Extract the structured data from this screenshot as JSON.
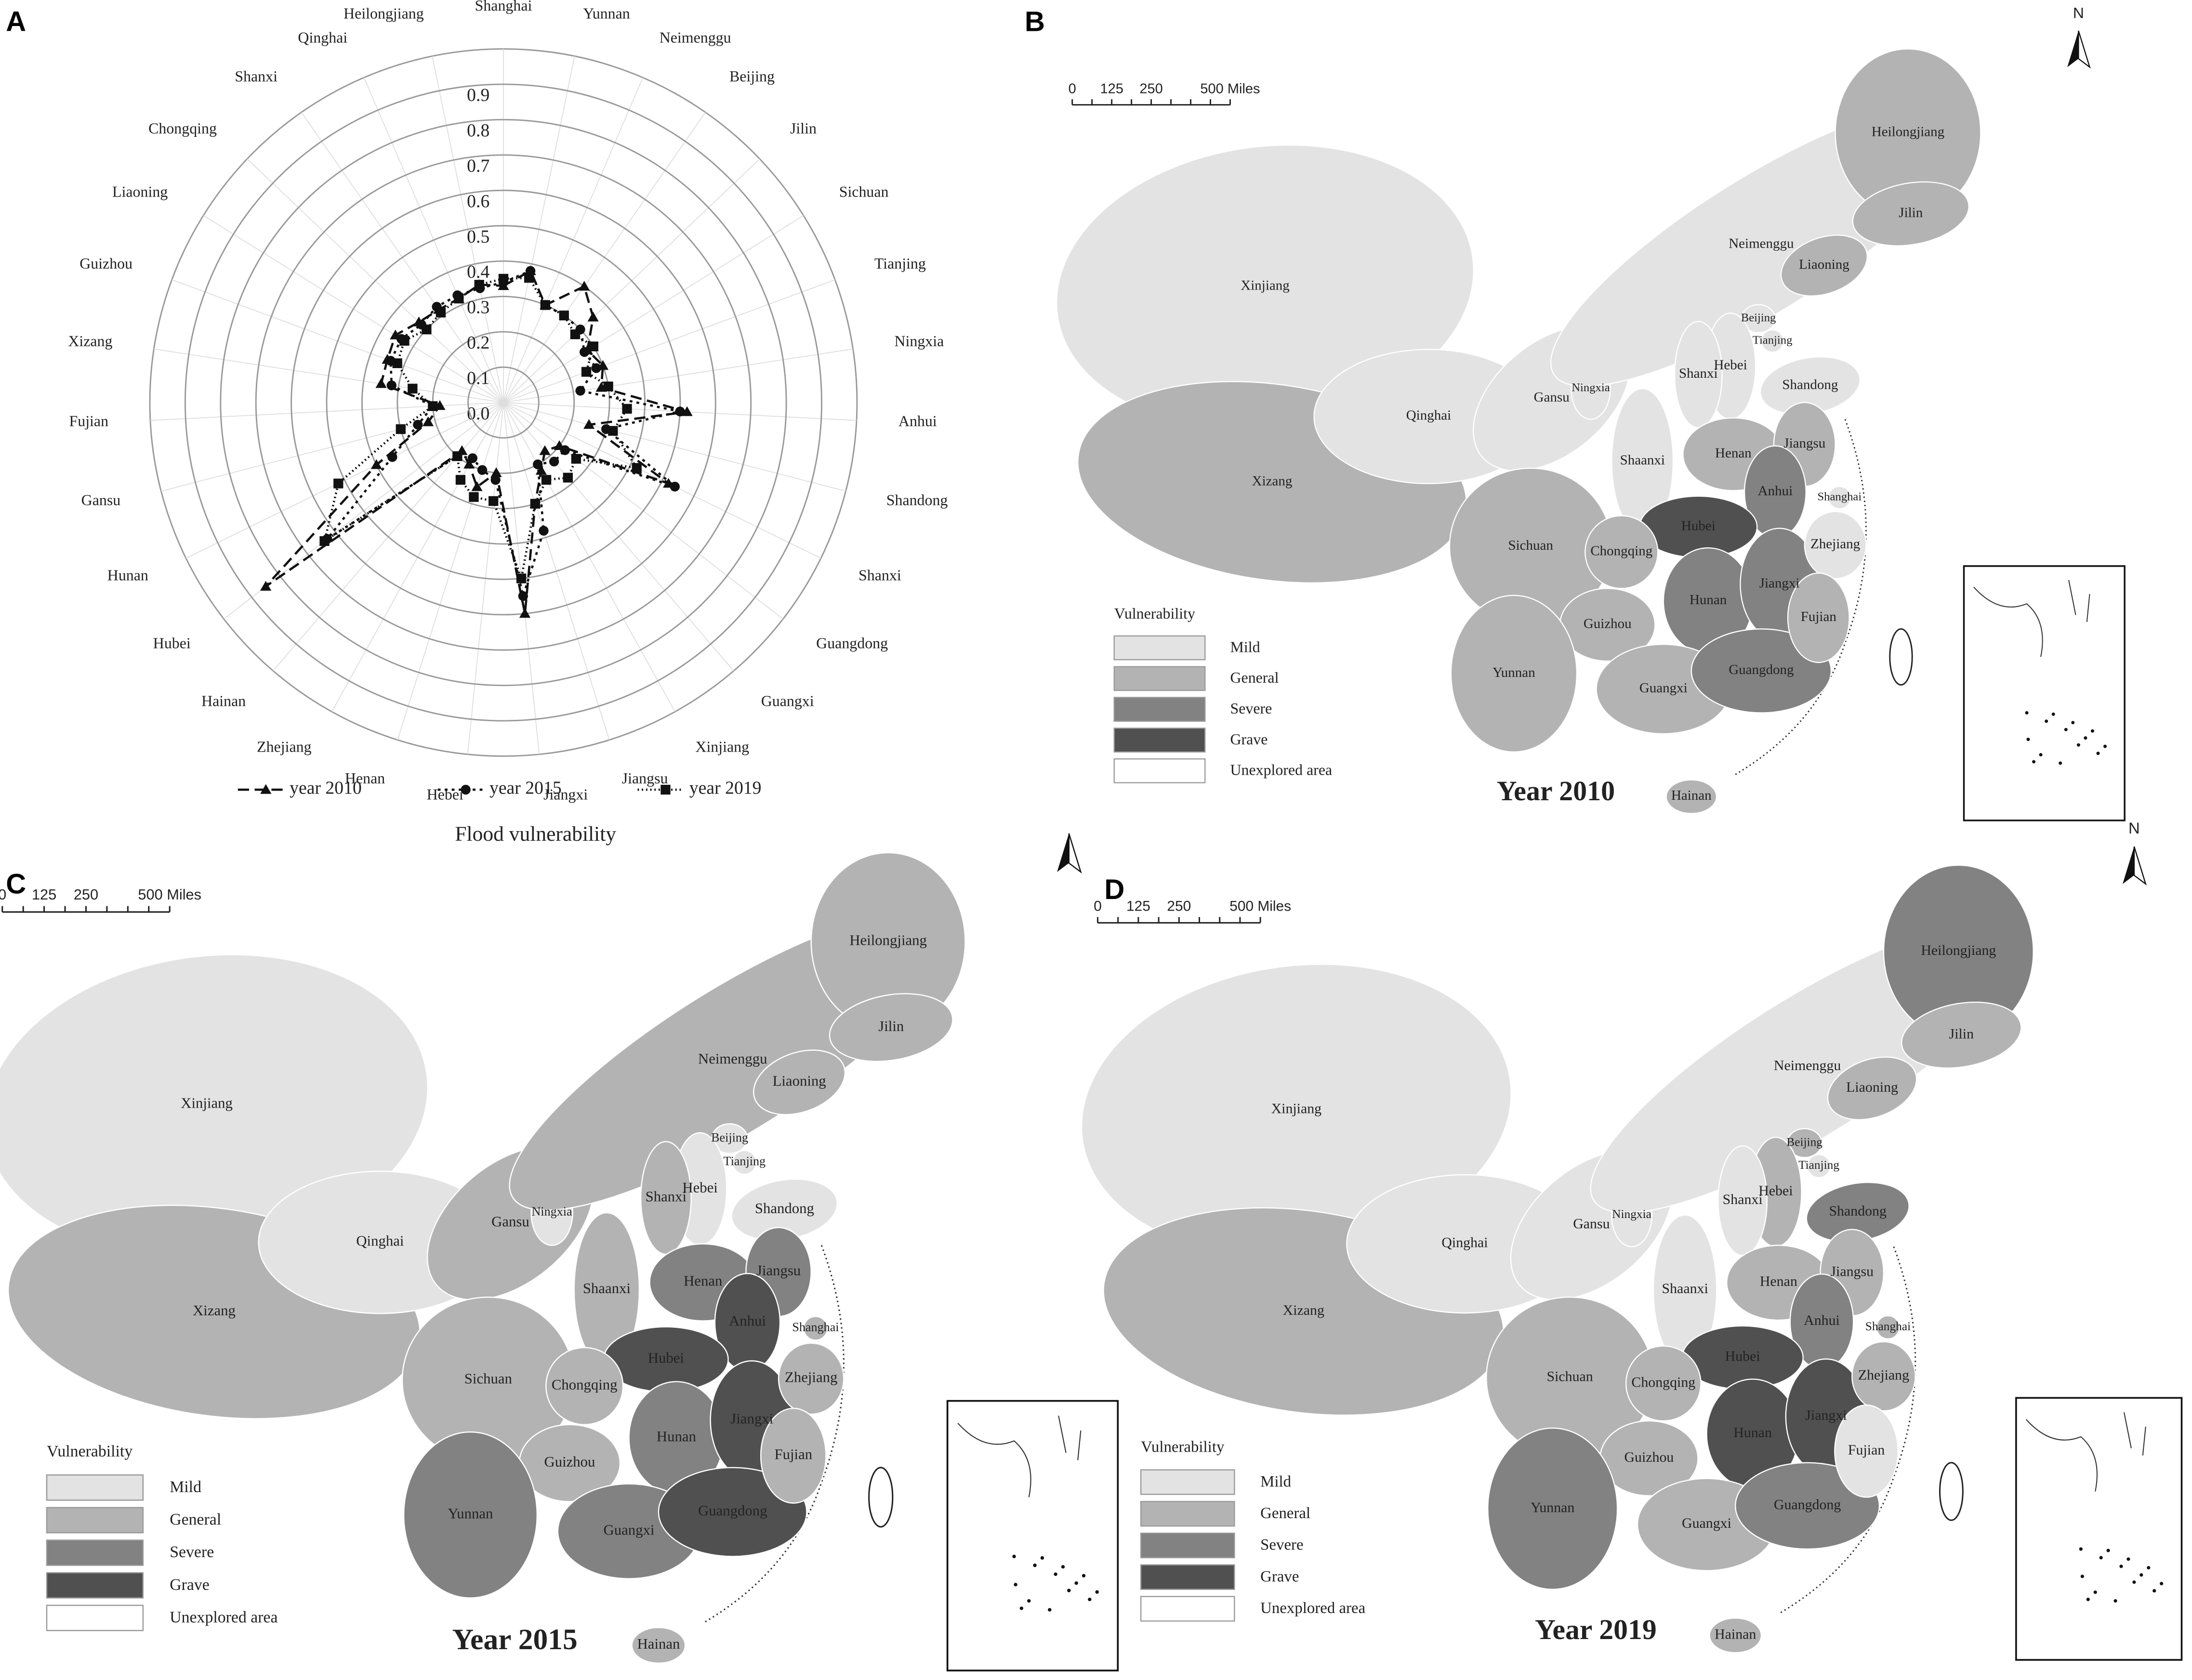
{
  "chart_data": [
    {
      "type": "radar",
      "panel_label": "A",
      "xlabel": "Flood vulnerability",
      "categories": [
        "Shanghai",
        "Yunnan",
        "Neimenggu",
        "Beijing",
        "Jilin",
        "Sichuan",
        "Tianjing",
        "Ningxia",
        "Anhui",
        "Shandong",
        "Shanxi",
        "Guangdong",
        "Guangxi",
        "Xinjiang",
        "Jiangsu",
        "Jiangxi",
        "Hebei",
        "Henan",
        "Zhejiang",
        "Hainan",
        "Hubei",
        "Hunan",
        "Gansu",
        "Fujian",
        "Xizang",
        "Guizhou",
        "Liaoning",
        "Chongqing",
        "Shanxi",
        "Qinghai",
        "Heilongjiang"
      ],
      "ylim": [
        0,
        1.0
      ],
      "yticks": [
        {
          "value": 0,
          "label": "0.0"
        },
        0.1,
        0.2,
        0.3,
        0.4,
        0.5,
        0.6,
        0.7,
        0.8,
        0.9
      ],
      "grid": true,
      "series": [
        {
          "name": "year 2010",
          "color": "#111111",
          "marker": "triangle",
          "dash": "8 4",
          "values": [
            0.33,
            0.38,
            0.3,
            0.4,
            0.35,
            0.28,
            0.3,
            0.28,
            0.52,
            0.25,
            0.52,
            0.2,
            0.18,
            0.22,
            0.3,
            0.6,
            0.2,
            0.25,
            0.2,
            0.18,
            0.85,
            0.4,
            0.22,
            0.18,
            0.35,
            0.35,
            0.36,
            0.33,
            0.32,
            0.32,
            0.34
          ]
        },
        {
          "name": "year 2015",
          "color": "#111111",
          "marker": "circle",
          "dash": "2 3",
          "values": [
            0.34,
            0.38,
            0.3,
            0.3,
            0.3,
            0.27,
            0.28,
            0.22,
            0.5,
            0.3,
            0.54,
            0.22,
            0.22,
            0.2,
            0.38,
            0.55,
            0.22,
            0.2,
            0.18,
            0.2,
            0.63,
            0.35,
            0.25,
            0.2,
            0.32,
            0.34,
            0.34,
            0.32,
            0.33,
            0.33,
            0.33
          ]
        },
        {
          "name": "year 2019",
          "color": "#111111",
          "marker": "square",
          "dash": "1 2",
          "values": [
            0.35,
            0.36,
            0.3,
            0.3,
            0.28,
            0.3,
            0.25,
            0.3,
            0.35,
            0.32,
            0.42,
            0.26,
            0.28,
            0.25,
            0.3,
            0.5,
            0.28,
            0.28,
            0.25,
            0.2,
            0.64,
            0.52,
            0.3,
            0.2,
            0.26,
            0.32,
            0.33,
            0.3,
            0.31,
            0.32,
            0.34
          ]
        }
      ]
    },
    {
      "type": "map",
      "panel_label": "B",
      "title": "Year 2010",
      "north_label": "N",
      "scalebar_labels": [
        "0",
        "125",
        "250",
        "500 Miles"
      ],
      "legend_title": "Vulnerability",
      "classes": [
        {
          "name": "Mild",
          "color": "#e3e3e3"
        },
        {
          "name": "General",
          "color": "#b3b3b3"
        },
        {
          "name": "Severe",
          "color": "#828282"
        },
        {
          "name": "Grave",
          "color": "#505050"
        },
        {
          "name": "Unexplored area",
          "color": "#ffffff"
        }
      ],
      "regions": [
        {
          "name": "Xinjiang",
          "class": "Mild"
        },
        {
          "name": "Xizang",
          "class": "General"
        },
        {
          "name": "Qinghai",
          "class": "Mild"
        },
        {
          "name": "Gansu",
          "class": "Mild"
        },
        {
          "name": "Ningxia",
          "class": "Mild"
        },
        {
          "name": "Neimenggu",
          "class": "Mild"
        },
        {
          "name": "Heilongjiang",
          "class": "General"
        },
        {
          "name": "Jilin",
          "class": "General"
        },
        {
          "name": "Liaoning",
          "class": "General"
        },
        {
          "name": "Beijing",
          "class": "Mild"
        },
        {
          "name": "Tianjing",
          "class": "Mild"
        },
        {
          "name": "Hebei",
          "class": "Mild"
        },
        {
          "name": "Shanxi",
          "class": "Mild"
        },
        {
          "name": "Shaanxi",
          "class": "Mild"
        },
        {
          "name": "Shandong",
          "class": "Mild"
        },
        {
          "name": "Henan",
          "class": "General"
        },
        {
          "name": "Jiangsu",
          "class": "General"
        },
        {
          "name": "Anhui",
          "class": "Severe"
        },
        {
          "name": "Shanghai",
          "class": "Mild"
        },
        {
          "name": "Hubei",
          "class": "Grave"
        },
        {
          "name": "Sichuan",
          "class": "General"
        },
        {
          "name": "Chongqing",
          "class": "General"
        },
        {
          "name": "Hunan",
          "class": "Severe"
        },
        {
          "name": "Jiangxi",
          "class": "Severe"
        },
        {
          "name": "Zhejiang",
          "class": "Mild"
        },
        {
          "name": "Guizhou",
          "class": "General"
        },
        {
          "name": "Yunnan",
          "class": "General"
        },
        {
          "name": "Guangxi",
          "class": "General"
        },
        {
          "name": "Guangdong",
          "class": "Severe"
        },
        {
          "name": "Fujian",
          "class": "General"
        },
        {
          "name": "Hainan",
          "class": "General"
        }
      ]
    },
    {
      "type": "map",
      "panel_label": "C",
      "title": "Year 2015",
      "scalebar_labels": [
        "0",
        "125",
        "250",
        "500 Miles"
      ],
      "legend_title": "Vulnerability",
      "classes": [
        {
          "name": "Mild",
          "color": "#e3e3e3"
        },
        {
          "name": "General",
          "color": "#b3b3b3"
        },
        {
          "name": "Severe",
          "color": "#828282"
        },
        {
          "name": "Grave",
          "color": "#505050"
        },
        {
          "name": "Unexplored area",
          "color": "#ffffff"
        }
      ],
      "regions": [
        {
          "name": "Xinjiang",
          "class": "Mild"
        },
        {
          "name": "Xizang",
          "class": "General"
        },
        {
          "name": "Qinghai",
          "class": "Mild"
        },
        {
          "name": "Gansu",
          "class": "General"
        },
        {
          "name": "Ningxia",
          "class": "Mild"
        },
        {
          "name": "Neimenggu",
          "class": "General"
        },
        {
          "name": "Heilongjiang",
          "class": "General"
        },
        {
          "name": "Jilin",
          "class": "General"
        },
        {
          "name": "Liaoning",
          "class": "General"
        },
        {
          "name": "Beijing",
          "class": "Mild"
        },
        {
          "name": "Tianjing",
          "class": "Mild"
        },
        {
          "name": "Hebei",
          "class": "Mild"
        },
        {
          "name": "Shanxi",
          "class": "General"
        },
        {
          "name": "Shaanxi",
          "class": "General"
        },
        {
          "name": "Shandong",
          "class": "Mild"
        },
        {
          "name": "Henan",
          "class": "Severe"
        },
        {
          "name": "Jiangsu",
          "class": "Severe"
        },
        {
          "name": "Anhui",
          "class": "Grave"
        },
        {
          "name": "Shanghai",
          "class": "General"
        },
        {
          "name": "Hubei",
          "class": "Grave"
        },
        {
          "name": "Sichuan",
          "class": "General"
        },
        {
          "name": "Chongqing",
          "class": "General"
        },
        {
          "name": "Hunan",
          "class": "Severe"
        },
        {
          "name": "Jiangxi",
          "class": "Grave"
        },
        {
          "name": "Zhejiang",
          "class": "General"
        },
        {
          "name": "Guizhou",
          "class": "General"
        },
        {
          "name": "Yunnan",
          "class": "Severe"
        },
        {
          "name": "Guangxi",
          "class": "Severe"
        },
        {
          "name": "Guangdong",
          "class": "Grave"
        },
        {
          "name": "Fujian",
          "class": "General"
        },
        {
          "name": "Hainan",
          "class": "General"
        }
      ]
    },
    {
      "type": "map",
      "panel_label": "D",
      "title": "Year 2019",
      "north_label": "N",
      "scalebar_labels": [
        "0",
        "125",
        "250",
        "500 Miles"
      ],
      "legend_title": "Vulnerability",
      "classes": [
        {
          "name": "Mild",
          "color": "#e3e3e3"
        },
        {
          "name": "General",
          "color": "#b3b3b3"
        },
        {
          "name": "Severe",
          "color": "#828282"
        },
        {
          "name": "Grave",
          "color": "#505050"
        },
        {
          "name": "Unexplored area",
          "color": "#ffffff"
        }
      ],
      "regions": [
        {
          "name": "Xinjiang",
          "class": "Mild"
        },
        {
          "name": "Xizang",
          "class": "General"
        },
        {
          "name": "Qinghai",
          "class": "Mild"
        },
        {
          "name": "Gansu",
          "class": "Mild"
        },
        {
          "name": "Ningxia",
          "class": "Mild"
        },
        {
          "name": "Neimenggu",
          "class": "Mild"
        },
        {
          "name": "Heilongjiang",
          "class": "Severe"
        },
        {
          "name": "Jilin",
          "class": "General"
        },
        {
          "name": "Liaoning",
          "class": "General"
        },
        {
          "name": "Beijing",
          "class": "General"
        },
        {
          "name": "Tianjing",
          "class": "Mild"
        },
        {
          "name": "Hebei",
          "class": "General"
        },
        {
          "name": "Shanxi",
          "class": "Mild"
        },
        {
          "name": "Shaanxi",
          "class": "Mild"
        },
        {
          "name": "Shandong",
          "class": "Severe"
        },
        {
          "name": "Henan",
          "class": "General"
        },
        {
          "name": "Jiangsu",
          "class": "General"
        },
        {
          "name": "Anhui",
          "class": "Severe"
        },
        {
          "name": "Shanghai",
          "class": "General"
        },
        {
          "name": "Hubei",
          "class": "Grave"
        },
        {
          "name": "Sichuan",
          "class": "General"
        },
        {
          "name": "Chongqing",
          "class": "General"
        },
        {
          "name": "Hunan",
          "class": "Grave"
        },
        {
          "name": "Jiangxi",
          "class": "Grave"
        },
        {
          "name": "Zhejiang",
          "class": "General"
        },
        {
          "name": "Guizhou",
          "class": "General"
        },
        {
          "name": "Yunnan",
          "class": "Severe"
        },
        {
          "name": "Guangxi",
          "class": "General"
        },
        {
          "name": "Guangdong",
          "class": "Severe"
        },
        {
          "name": "Fujian",
          "class": "Mild"
        },
        {
          "name": "Hainan",
          "class": "General"
        }
      ]
    }
  ]
}
